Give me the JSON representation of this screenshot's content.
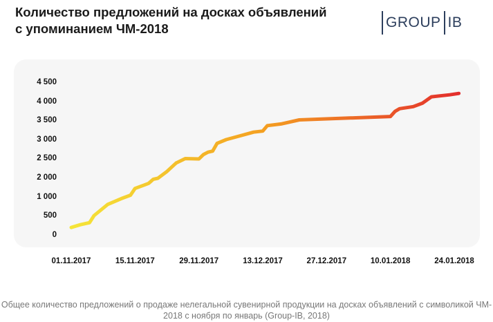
{
  "header": {
    "title_line1": "Количество предложений на досках объявлений",
    "title_line2": "с упоминанием ЧМ-2018",
    "logo_left": "GROUP",
    "logo_right": "IB"
  },
  "caption": {
    "line1": "Общее количество предложений о продаже нелегальной сувенирной продукции на досках объявлений с символикой ЧМ-",
    "line2": "2018 с ноября по январь (Group-IB, 2018)"
  },
  "colors": {
    "start": "#f5e83a",
    "mid": "#f4a021",
    "end": "#e32d2d"
  },
  "chart_data": {
    "type": "line",
    "title": "Количество предложений на досках объявлений с упоминанием ЧМ-2018",
    "xlabel": "",
    "ylabel": "",
    "x_tick_labels": [
      "01.11.2017",
      "15.11.2017",
      "29.11.2017",
      "13.12.2017",
      "27.12.2017",
      "10.01.2018",
      "24.01.2018"
    ],
    "y_tick_labels": [
      "0",
      "500",
      "1 000",
      "2 000",
      "2 500",
      "3 000",
      "3 500",
      "4 000",
      "4 500"
    ],
    "ylim": [
      0,
      4500
    ],
    "grid": false,
    "series": [
      {
        "values": [
          [
            "01.11.2017",
            200
          ],
          [
            "03.11.2017",
            280
          ],
          [
            "05.11.2017",
            340
          ],
          [
            "06.11.2017",
            550
          ],
          [
            "09.11.2017",
            880
          ],
          [
            "12.11.2017",
            1050
          ],
          [
            "14.11.2017",
            1150
          ],
          [
            "15.11.2017",
            1350
          ],
          [
            "17.11.2017",
            1450
          ],
          [
            "18.11.2017",
            1500
          ],
          [
            "19.11.2017",
            1620
          ],
          [
            "20.11.2017",
            1650
          ],
          [
            "22.11.2017",
            1850
          ],
          [
            "24.11.2017",
            2100
          ],
          [
            "26.11.2017",
            2230
          ],
          [
            "29.11.2017",
            2220
          ],
          [
            "30.11.2017",
            2350
          ],
          [
            "01.12.2017",
            2420
          ],
          [
            "02.12.2017",
            2450
          ],
          [
            "03.12.2017",
            2680
          ],
          [
            "05.12.2017",
            2790
          ],
          [
            "08.12.2017",
            2900
          ],
          [
            "11.12.2017",
            3010
          ],
          [
            "13.12.2017",
            3040
          ],
          [
            "14.12.2017",
            3200
          ],
          [
            "17.12.2017",
            3250
          ],
          [
            "21.12.2017",
            3370
          ],
          [
            "25.12.2017",
            3390
          ],
          [
            "10.01.2018",
            3470
          ],
          [
            "11.01.2018",
            3620
          ],
          [
            "12.01.2018",
            3700
          ],
          [
            "15.01.2018",
            3760
          ],
          [
            "17.01.2018",
            3860
          ],
          [
            "19.01.2018",
            4050
          ],
          [
            "23.01.2018",
            4110
          ],
          [
            "25.01.2018",
            4150
          ]
        ]
      }
    ]
  }
}
